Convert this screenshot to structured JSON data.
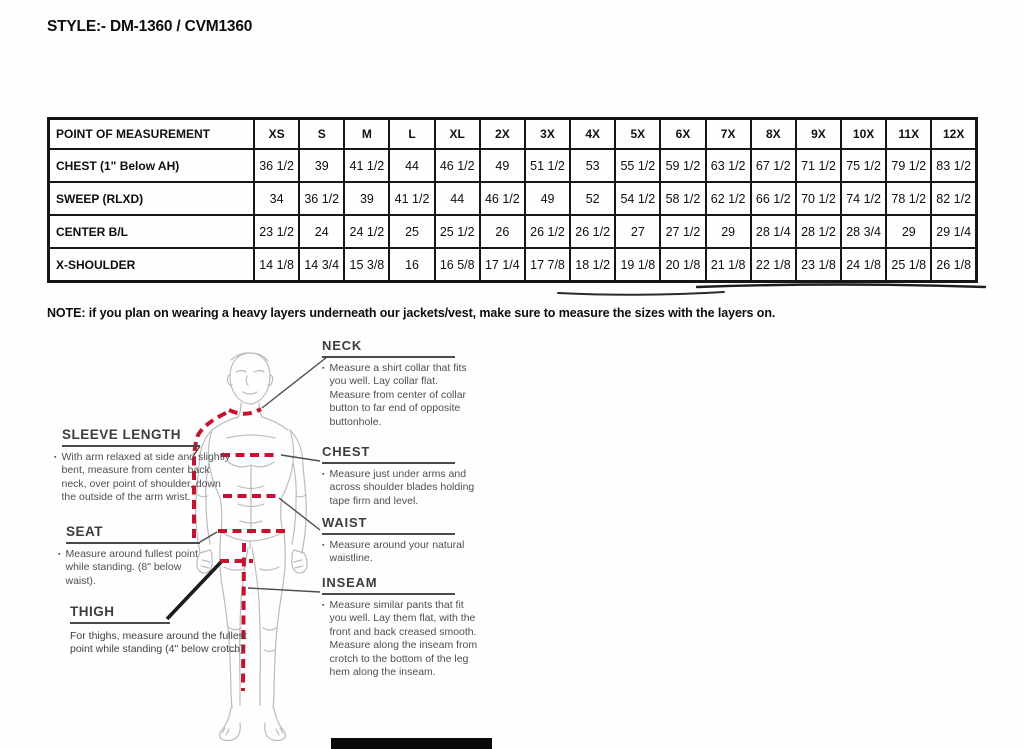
{
  "page_title": "STYLE:- DM-1360 / CVM1360",
  "note": "NOTE: if you plan on wearing a heavy layers underneath our jackets/vest, make sure to measure the sizes with the layers on.",
  "bullet_char": "▪",
  "size_table": {
    "columns": [
      "POINT OF MEASUREMENT",
      "XS",
      "S",
      "M",
      "L",
      "XL",
      "2X",
      "3X",
      "4X",
      "5X",
      "6X",
      "7X",
      "8X",
      "9X",
      "10X",
      "11X",
      "12X"
    ],
    "rows": [
      {
        "label": "CHEST (1\" Below AH)",
        "values": [
          "36 1/2",
          "39",
          "41 1/2",
          "44",
          "46 1/2",
          "49",
          "51 1/2",
          "53",
          "55 1/2",
          "59 1/2",
          "63 1/2",
          "67 1/2",
          "71 1/2",
          "75 1/2",
          "79 1/2",
          "83 1/2"
        ]
      },
      {
        "label": "SWEEP (RLXD)",
        "values": [
          "34",
          "36 1/2",
          "39",
          "41 1/2",
          "44",
          "46 1/2",
          "49",
          "52",
          "54 1/2",
          "58 1/2",
          "62 1/2",
          "66 1/2",
          "70 1/2",
          "74 1/2",
          "78 1/2",
          "82 1/2"
        ]
      },
      {
        "label": "CENTER B/L",
        "values": [
          "23 1/2",
          "24",
          "24 1/2",
          "25",
          "25 1/2",
          "26",
          "26 1/2",
          "26 1/2",
          "27",
          "27 1/2",
          "29",
          "28 1/4",
          "28 1/2",
          "28 3/4",
          "29",
          "29 1/4"
        ]
      },
      {
        "label": "X-SHOULDER",
        "values": [
          "14 1/8",
          "14 3/4",
          "15 3/8",
          "16",
          "16 5/8",
          "17 1/4",
          "17 7/8",
          "18 1/2",
          "19 1/8",
          "20 1/8",
          "21 1/8",
          "22 1/8",
          "23 1/8",
          "24 1/8",
          "25 1/8",
          "26 1/8"
        ]
      }
    ]
  },
  "measure_guide": {
    "neck": {
      "title": "NECK",
      "text": "Measure a shirt collar that fits you well. Lay collar flat. Measure from center of collar button to far end of opposite buttonhole."
    },
    "chest": {
      "title": "CHEST",
      "text": "Measure just under arms and across shoulder blades holding tape firm and level."
    },
    "waist": {
      "title": "WAIST",
      "text": "Measure around your natural waistline."
    },
    "inseam": {
      "title": "INSEAM",
      "text": "Measure similar pants that fit you well. Lay them flat, with the front and back creased smooth. Measure along the inseam from crotch to the bottom of the leg hem along the inseam."
    },
    "sleeve_length": {
      "title": "SLEEVE LENGTH",
      "text": "With arm relaxed at side and slightly bent, measure from center back neck, over point of shoulder, down the outside of the arm wrist."
    },
    "seat": {
      "title": "SEAT",
      "text": "Measure around fullest point while standing. (8\" below waist)."
    },
    "thigh": {
      "title": "THIGH",
      "text": "For thighs, measure around the fullest point while standing (4\" below crotch)"
    }
  },
  "colors": {
    "dash_red": "#c41230",
    "figure_gray": "#b9bdbf",
    "leader_gray": "#4d4d4d",
    "leader_black": "#1c1c1c"
  }
}
